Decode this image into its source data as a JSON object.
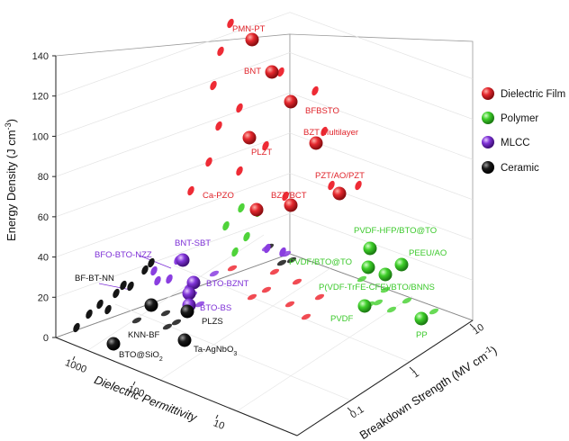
{
  "chart_data": {
    "type": "scatter",
    "projection": "3d",
    "title": "",
    "axes": {
      "z": {
        "label": "Energy Density (J cm",
        "label_sup": "-3",
        "label_tail": ")",
        "range": [
          0,
          140
        ],
        "ticks": [
          "0",
          "20",
          "40",
          "60",
          "80",
          "100",
          "120",
          "140"
        ]
      },
      "x": {
        "label": "Dielectric Permittivity",
        "scale": "log",
        "ticks": [
          "1000",
          "100",
          "10"
        ]
      },
      "y": {
        "label": "Breakdown Strength (MV cm",
        "label_sup": "-1",
        "label_tail": ")",
        "scale": "log",
        "ticks": [
          "10",
          "1",
          "0.1"
        ]
      }
    },
    "legend": {
      "position": "right",
      "entries": [
        {
          "name": "Dielectric Film",
          "color": "#e0242b"
        },
        {
          "name": "Polymer",
          "color": "#3cc92c"
        },
        {
          "name": "MLCC",
          "color": "#7d2fd6"
        },
        {
          "name": "Ceramic",
          "color": "#111111"
        }
      ]
    },
    "labels": {
      "pmn_pt": "PMN-PT",
      "bnt": "BNT",
      "bfbsto": "BFBSTO",
      "bzt_multilayer": "BZT Multilayer",
      "plzt": "PLZT",
      "pzt_ao_pzt": "PZT/AO/PZT",
      "ca_pzo": "Ca-PZO",
      "bzt_bct": "BZT/BCT",
      "pvdf_hfp": "PVDF-HFP/BTO@TO",
      "peeu_ao": "PEEU/AO",
      "pvdf_bto": "PVDF/BTO@TO",
      "pvdf_trfe": "P(VDF-TrFE-CFE)/BTO/BNNS",
      "pvdf": "PVDF",
      "pp": "PP",
      "bfo_bto_nzz": "BFO-BTO-NZZ",
      "bnt_sbt": "BNT-SBT",
      "bto_bznt": "BTO-BZNT",
      "bto_bs": "BTO-BS",
      "bf_bt_nn": "BF-BT-NN",
      "knn_bf": "KNN-BF",
      "bto_sio2": "BTO@SiO",
      "bto_sio2_sub": "2",
      "plzs": "PLZS",
      "ta_agnbo3": "Ta-AgNbO",
      "ta_agnbo3_sub": "3"
    }
  }
}
